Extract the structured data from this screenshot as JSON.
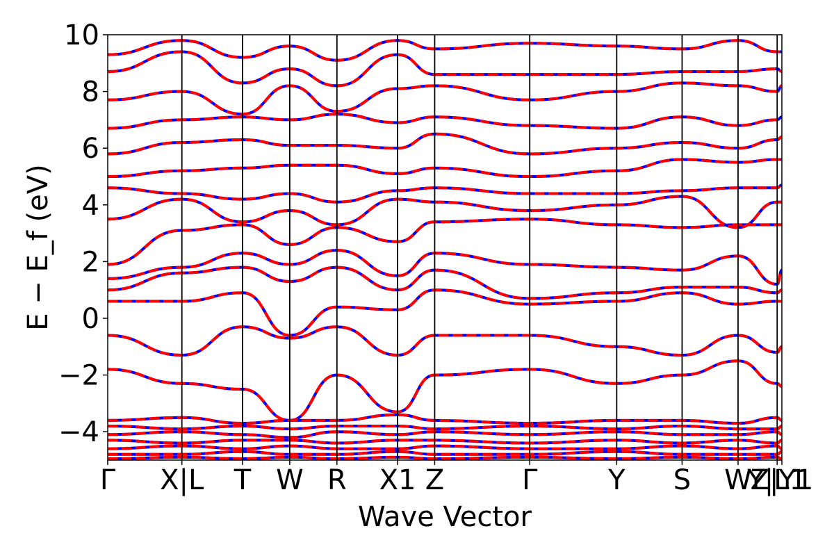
{
  "chart_data": {
    "type": "line",
    "title": "",
    "xlabel": "Wave Vector",
    "ylabel": "E − E_f (eV)",
    "ylim": [
      -5,
      10
    ],
    "yticks": [
      -4,
      -2,
      0,
      2,
      4,
      6,
      8,
      10
    ],
    "ytick_labels": [
      "−4",
      "−2",
      "0",
      "2",
      "4",
      "6",
      "8",
      "10"
    ],
    "grid": false,
    "legend": "none",
    "x_range": [
      0,
      1
    ],
    "kpoints": [
      {
        "x": 0.0,
        "label": "Γ"
      },
      {
        "x": 0.11,
        "label": "X|L"
      },
      {
        "x": 0.2,
        "label": "T"
      },
      {
        "x": 0.27,
        "label": "W"
      },
      {
        "x": 0.34,
        "label": "R"
      },
      {
        "x": 0.43,
        "label": "X1"
      },
      {
        "x": 0.485,
        "label": "Z"
      },
      {
        "x": 0.626,
        "label": "Γ"
      },
      {
        "x": 0.755,
        "label": "Y"
      },
      {
        "x": 0.852,
        "label": "S"
      },
      {
        "x": 0.935,
        "label": "W"
      },
      {
        "x": 0.993,
        "label": "Y|L1"
      },
      {
        "x": 1.0,
        "label": "Z|Y1"
      }
    ],
    "series": [
      {
        "name": "",
        "color": "#0000ff",
        "style": "solid"
      },
      {
        "name": "",
        "color": "#ff0000",
        "style": "dashed"
      }
    ],
    "bands": [
      {
        "y": [
          -1.8,
          -2.3,
          -2.5,
          -3.6,
          -2.0,
          -3.3,
          -2.0,
          -1.8,
          -2.3,
          -2.0,
          -1.5,
          -2.3,
          -2.4
        ]
      },
      {
        "y": [
          -0.6,
          -1.3,
          -0.3,
          -0.7,
          -0.3,
          -1.3,
          -0.6,
          -0.6,
          -1.0,
          -1.3,
          -0.6,
          -1.2,
          -1.0
        ]
      },
      {
        "y": [
          0.6,
          0.6,
          0.9,
          -0.6,
          0.4,
          0.3,
          1.0,
          0.5,
          0.6,
          0.9,
          0.5,
          0.6,
          0.6
        ]
      },
      {
        "y": [
          1.0,
          1.6,
          1.8,
          1.3,
          1.8,
          1.0,
          1.7,
          0.7,
          0.9,
          1.1,
          1.1,
          0.9,
          1.0
        ]
      },
      {
        "y": [
          1.4,
          1.8,
          2.3,
          1.9,
          2.4,
          1.5,
          2.3,
          1.9,
          1.8,
          1.7,
          2.2,
          1.2,
          1.7
        ]
      },
      {
        "y": [
          1.9,
          3.1,
          3.3,
          2.6,
          3.2,
          2.7,
          3.4,
          3.5,
          3.3,
          3.2,
          3.3,
          3.3,
          3.3
        ]
      },
      {
        "y": [
          3.5,
          4.2,
          3.4,
          3.8,
          3.3,
          4.2,
          4.1,
          3.8,
          4.0,
          4.3,
          3.2,
          4.1,
          4.1
        ]
      },
      {
        "y": [
          4.6,
          4.4,
          4.2,
          4.4,
          4.1,
          4.5,
          4.6,
          4.4,
          4.4,
          4.5,
          4.6,
          4.6,
          4.7
        ]
      },
      {
        "y": [
          5.0,
          5.2,
          5.3,
          5.4,
          5.4,
          5.1,
          5.3,
          5.0,
          5.2,
          5.6,
          5.5,
          5.6,
          5.6
        ]
      },
      {
        "y": [
          5.8,
          6.2,
          6.3,
          6.1,
          6.1,
          6.0,
          6.5,
          5.8,
          6.0,
          6.2,
          6.0,
          6.3,
          6.4
        ]
      },
      {
        "y": [
          6.7,
          7.0,
          7.1,
          7.0,
          7.2,
          6.9,
          7.1,
          6.8,
          6.7,
          7.1,
          6.8,
          7.0,
          7.1
        ]
      },
      {
        "y": [
          7.7,
          8.0,
          7.2,
          8.2,
          7.3,
          8.1,
          8.2,
          7.7,
          8.0,
          8.3,
          8.2,
          8.0,
          8.2
        ]
      },
      {
        "y": [
          8.7,
          9.4,
          8.3,
          8.8,
          8.2,
          9.3,
          8.6,
          8.6,
          8.6,
          8.7,
          8.7,
          8.8,
          8.7
        ]
      },
      {
        "y": [
          9.3,
          9.8,
          9.2,
          9.6,
          9.1,
          9.8,
          9.5,
          9.7,
          9.6,
          9.5,
          9.8,
          9.4,
          9.4
        ]
      },
      {
        "y": [
          -3.6,
          -3.5,
          -3.7,
          -3.6,
          -3.6,
          -3.4,
          -3.6,
          -3.7,
          -3.6,
          -3.6,
          -3.7,
          -3.5,
          -3.6
        ]
      },
      {
        "y": [
          -3.8,
          -3.9,
          -3.8,
          -3.9,
          -3.8,
          -3.8,
          -3.9,
          -3.8,
          -3.9,
          -3.8,
          -3.9,
          -3.9,
          -3.8
        ]
      },
      {
        "y": [
          -4.1,
          -4.0,
          -4.1,
          -4.2,
          -4.0,
          -4.1,
          -4.0,
          -4.1,
          -4.0,
          -4.1,
          -4.1,
          -4.0,
          -4.1
        ]
      },
      {
        "y": [
          -4.3,
          -4.4,
          -4.3,
          -4.3,
          -4.4,
          -4.3,
          -4.3,
          -4.4,
          -4.3,
          -4.4,
          -4.3,
          -4.4,
          -4.3
        ]
      },
      {
        "y": [
          -4.6,
          -4.5,
          -4.6,
          -4.5,
          -4.6,
          -4.6,
          -4.5,
          -4.6,
          -4.6,
          -4.5,
          -4.6,
          -4.5,
          -4.6
        ]
      },
      {
        "y": [
          -4.8,
          -4.8,
          -4.7,
          -4.8,
          -4.8,
          -4.7,
          -4.8,
          -4.8,
          -4.7,
          -4.8,
          -4.8,
          -4.8,
          -4.7
        ]
      },
      {
        "y": [
          -4.95,
          -4.9,
          -4.95,
          -4.9,
          -4.95,
          -4.9,
          -4.95,
          -4.9,
          -4.95,
          -4.9,
          -4.95,
          -4.9,
          -4.95
        ]
      }
    ]
  }
}
